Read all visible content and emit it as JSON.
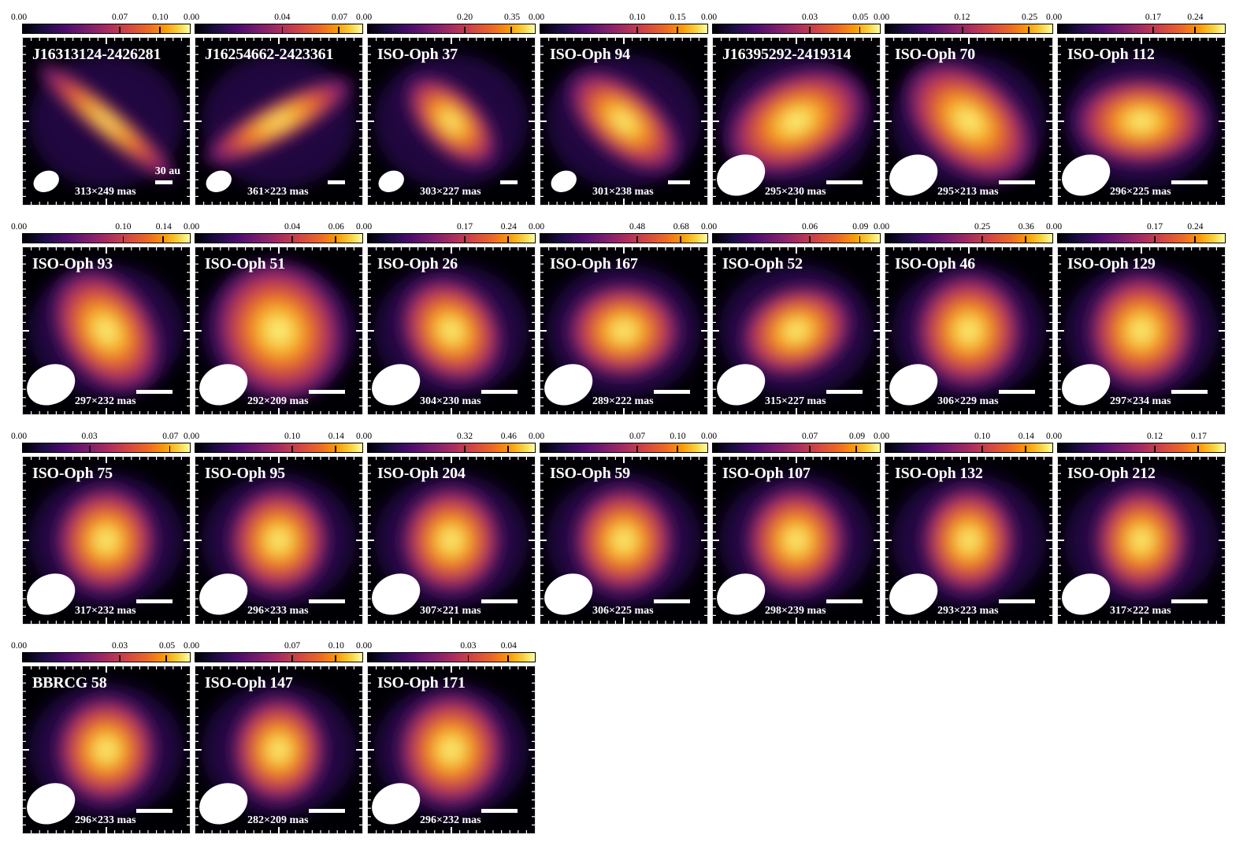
{
  "scale_label": "30 au",
  "panels": [
    {
      "name": "J16313124-2426281",
      "beam": "313×249 mas",
      "cbar": [
        "0.00",
        "0.07",
        "0.10"
      ],
      "tick_fracs": [
        0.58,
        0.82
      ],
      "shape": {
        "pa": -50,
        "rx": 0.56,
        "ry": 0.1
      }
    },
    {
      "name": "J16254662-2423361",
      "beam": "361×223 mas",
      "cbar": [
        "0.00",
        "0.04",
        "0.07"
      ],
      "tick_fracs": [
        0.52,
        0.86
      ],
      "shape": {
        "pa": 62,
        "rx": 0.52,
        "ry": 0.13
      }
    },
    {
      "name": "ISO-Oph 37",
      "beam": "303×227 mas",
      "cbar": [
        "0.00",
        "0.20",
        "0.35"
      ],
      "tick_fracs": [
        0.58,
        0.86
      ],
      "shape": {
        "pa": -45,
        "rx": 0.36,
        "ry": 0.19
      }
    },
    {
      "name": "ISO-Oph 94",
      "beam": "301×238 mas",
      "cbar": [
        "0.00",
        "0.10",
        "0.15"
      ],
      "tick_fracs": [
        0.58,
        0.82
      ],
      "shape": {
        "pa": -50,
        "rx": 0.42,
        "ry": 0.22
      }
    },
    {
      "name": "J16395292-2419314",
      "beam": "295×230 mas",
      "cbar": [
        "0.00",
        "0.03",
        "0.05"
      ],
      "tick_fracs": [
        0.58,
        0.88
      ],
      "shape": {
        "pa": 65,
        "rx": 0.46,
        "ry": 0.3
      }
    },
    {
      "name": "ISO-Oph 70",
      "beam": "295×213 mas",
      "cbar": [
        "0.00",
        "0.12",
        "0.25"
      ],
      "tick_fracs": [
        0.46,
        0.86
      ],
      "shape": {
        "pa": -50,
        "rx": 0.46,
        "ry": 0.3
      }
    },
    {
      "name": "ISO-Oph 112",
      "beam": "296×225 mas",
      "cbar": [
        "0.00",
        "0.17",
        "0.24"
      ],
      "tick_fracs": [
        0.57,
        0.82
      ],
      "shape": {
        "pa": 90,
        "rx": 0.42,
        "ry": 0.28
      }
    },
    {
      "name": "ISO-Oph 93",
      "beam": "297×232 mas",
      "cbar": [
        "0.00",
        "0.10",
        "0.14"
      ],
      "tick_fracs": [
        0.6,
        0.84
      ],
      "shape": {
        "pa": -35,
        "rx": 0.42,
        "ry": 0.3
      }
    },
    {
      "name": "ISO-Oph 51",
      "beam": "292×209 mas",
      "cbar": [
        "0.00",
        "0.04",
        "0.06"
      ],
      "tick_fracs": [
        0.58,
        0.84
      ],
      "shape": {
        "pa": -30,
        "rx": 0.44,
        "ry": 0.4
      }
    },
    {
      "name": "ISO-Oph 26",
      "beam": "304×230 mas",
      "cbar": [
        "0.00",
        "0.17",
        "0.24"
      ],
      "tick_fracs": [
        0.58,
        0.84
      ],
      "shape": {
        "pa": -40,
        "rx": 0.36,
        "ry": 0.3
      }
    },
    {
      "name": "ISO-Oph 167",
      "beam": "289×222 mas",
      "cbar": [
        "0.00",
        "0.48",
        "0.68"
      ],
      "tick_fracs": [
        0.58,
        0.84
      ],
      "shape": {
        "pa": 90,
        "rx": 0.36,
        "ry": 0.3
      }
    },
    {
      "name": "ISO-Oph 52",
      "beam": "315×227 mas",
      "cbar": [
        "0.00",
        "0.06",
        "0.09"
      ],
      "tick_fracs": [
        0.58,
        0.88
      ],
      "shape": {
        "pa": 70,
        "rx": 0.36,
        "ry": 0.28
      }
    },
    {
      "name": "ISO-Oph 46",
      "beam": "306×229 mas",
      "cbar": [
        "0.00",
        "0.25",
        "0.36"
      ],
      "tick_fracs": [
        0.58,
        0.84
      ],
      "shape": {
        "pa": 0,
        "rx": 0.36,
        "ry": 0.34
      }
    },
    {
      "name": "ISO-Oph 129",
      "beam": "297×234 mas",
      "cbar": [
        "0.00",
        "0.17",
        "0.24"
      ],
      "tick_fracs": [
        0.58,
        0.82
      ],
      "shape": {
        "pa": 0,
        "rx": 0.36,
        "ry": 0.34
      }
    },
    {
      "name": "ISO-Oph 75",
      "beam": "317×232 mas",
      "cbar": [
        "0.00",
        "0.03",
        "0.07"
      ],
      "tick_fracs": [
        0.4,
        0.88
      ],
      "shape": {
        "pa": 0,
        "rx": 0.34,
        "ry": 0.32
      }
    },
    {
      "name": "ISO-Oph 95",
      "beam": "296×233 mas",
      "cbar": [
        "0.00",
        "0.10",
        "0.14"
      ],
      "tick_fracs": [
        0.58,
        0.84
      ],
      "shape": {
        "pa": 0,
        "rx": 0.34,
        "ry": 0.32
      }
    },
    {
      "name": "ISO-Oph 204",
      "beam": "307×221 mas",
      "cbar": [
        "0.00",
        "0.32",
        "0.46"
      ],
      "tick_fracs": [
        0.58,
        0.84
      ],
      "shape": {
        "pa": 0,
        "rx": 0.34,
        "ry": 0.32
      }
    },
    {
      "name": "ISO-Oph 59",
      "beam": "306×225 mas",
      "cbar": [
        "0.00",
        "0.07",
        "0.10"
      ],
      "tick_fracs": [
        0.58,
        0.82
      ],
      "shape": {
        "pa": 0,
        "rx": 0.34,
        "ry": 0.32
      }
    },
    {
      "name": "ISO-Oph 107",
      "beam": "298×239 mas",
      "cbar": [
        "0.00",
        "0.07",
        "0.09"
      ],
      "tick_fracs": [
        0.58,
        0.86
      ],
      "shape": {
        "pa": 0,
        "rx": 0.34,
        "ry": 0.32
      }
    },
    {
      "name": "ISO-Oph 132",
      "beam": "293×223 mas",
      "cbar": [
        "0.00",
        "0.10",
        "0.14"
      ],
      "tick_fracs": [
        0.58,
        0.84
      ],
      "shape": {
        "pa": 0,
        "rx": 0.34,
        "ry": 0.3
      }
    },
    {
      "name": "ISO-Oph 212",
      "beam": "317×222 mas",
      "cbar": [
        "0.00",
        "0.12",
        "0.17"
      ],
      "tick_fracs": [
        0.58,
        0.84
      ],
      "shape": {
        "pa": 0,
        "rx": 0.34,
        "ry": 0.3
      }
    },
    {
      "name": "BBRCG 58",
      "beam": "296×233 mas",
      "cbar": [
        "0.00",
        "0.03",
        "0.05"
      ],
      "tick_fracs": [
        0.58,
        0.86
      ],
      "shape": {
        "pa": 0,
        "rx": 0.34,
        "ry": 0.32
      }
    },
    {
      "name": "ISO-Oph 147",
      "beam": "282×209 mas",
      "cbar": [
        "0.00",
        "0.07",
        "0.10"
      ],
      "tick_fracs": [
        0.58,
        0.84
      ],
      "shape": {
        "pa": 0,
        "rx": 0.34,
        "ry": 0.3
      }
    },
    {
      "name": "ISO-Oph 171",
      "beam": "296×232 mas",
      "cbar": [
        "0.00",
        "0.03",
        "0.04"
      ],
      "tick_fracs": [
        0.6,
        0.84
      ],
      "shape": {
        "pa": 0,
        "rx": 0.36,
        "ry": 0.34
      }
    }
  ]
}
